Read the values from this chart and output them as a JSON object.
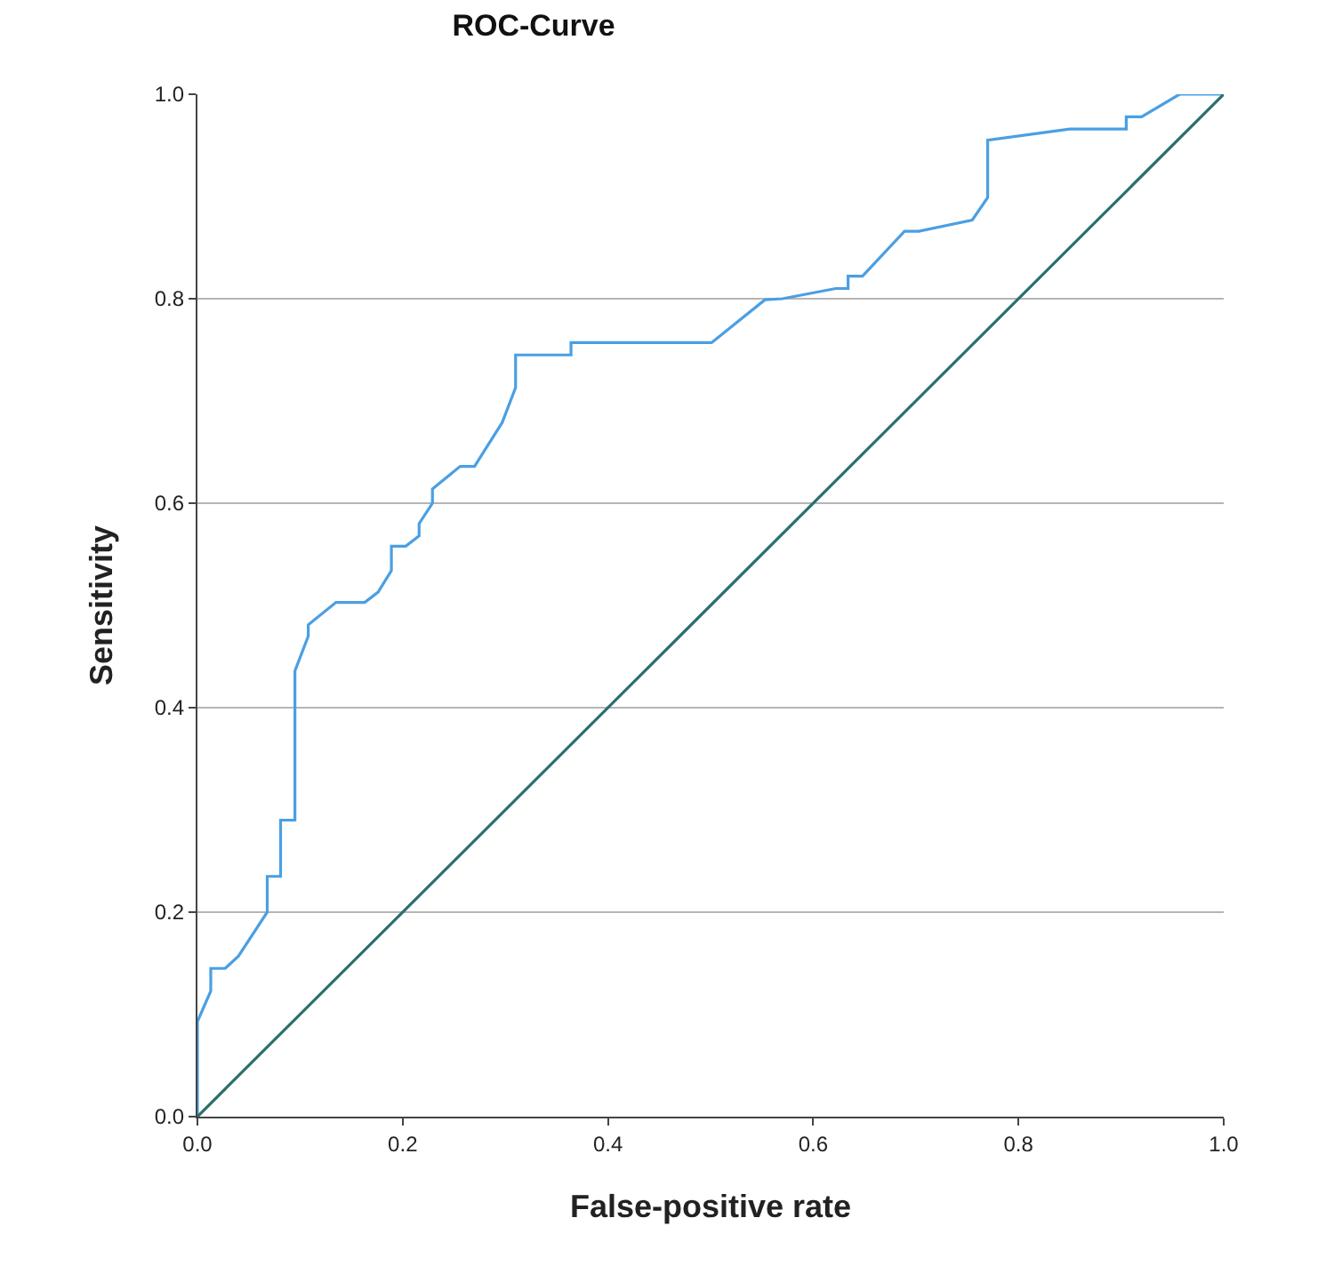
{
  "chart_data": {
    "type": "line",
    "title": "ROC-Curve",
    "xlabel": "False-positive rate",
    "ylabel": "Sensitivity",
    "series": [
      {
        "color": "#4a9fe3",
        "x": [
          0,
          0,
          0.013,
          0.013,
          0.027,
          0.04,
          0.068,
          0.068,
          0.081,
          0.081,
          0.095,
          0.095,
          0.108,
          0.108,
          0.135,
          0.163,
          0.176,
          0.189,
          0.189,
          0.203,
          0.216,
          0.216,
          0.229,
          0.229,
          0.256,
          0.27,
          0.297,
          0.31,
          0.31,
          0.364,
          0.364,
          0.501,
          0.553,
          0.57,
          0.622,
          0.634,
          0.634,
          0.648,
          0.689,
          0.703,
          0.755,
          0.77,
          0.77,
          0.85,
          0.905,
          0.905,
          0.92,
          0.957,
          1.0
        ],
        "values": [
          0,
          0.093,
          0.123,
          0.145,
          0.145,
          0.157,
          0.2,
          0.235,
          0.235,
          0.29,
          0.29,
          0.436,
          0.47,
          0.481,
          0.503,
          0.503,
          0.513,
          0.534,
          0.558,
          0.558,
          0.568,
          0.58,
          0.6,
          0.614,
          0.636,
          0.636,
          0.679,
          0.713,
          0.745,
          0.745,
          0.757,
          0.757,
          0.799,
          0.8,
          0.81,
          0.81,
          0.822,
          0.822,
          0.866,
          0.866,
          0.877,
          0.899,
          0.955,
          0.966,
          0.966,
          0.978,
          0.978,
          1.0,
          1.0
        ]
      },
      {
        "color": "#2b6f6c",
        "x": [
          0,
          1
        ],
        "values": [
          0,
          1
        ]
      }
    ],
    "xlim": [
      0,
      1
    ],
    "ylim": [
      0,
      1
    ],
    "xticks": [
      {
        "value": 0,
        "label": "0.0"
      },
      {
        "value": 0.2,
        "label": "0.2"
      },
      {
        "value": 0.4,
        "label": "0.4"
      },
      {
        "value": 0.6,
        "label": "0.6"
      },
      {
        "value": 0.8,
        "label": "0.8"
      },
      {
        "value": 1,
        "label": "1.0"
      }
    ],
    "yticks": [
      {
        "value": 0,
        "label": "0.0"
      },
      {
        "value": 0.2,
        "label": "0.2"
      },
      {
        "value": 0.4,
        "label": "0.4"
      },
      {
        "value": 0.6,
        "label": "0.6"
      },
      {
        "value": 0.8,
        "label": "0.8"
      },
      {
        "value": 1,
        "label": "1.0"
      }
    ],
    "grid": "y",
    "marker": "none",
    "line_style": "solid"
  }
}
